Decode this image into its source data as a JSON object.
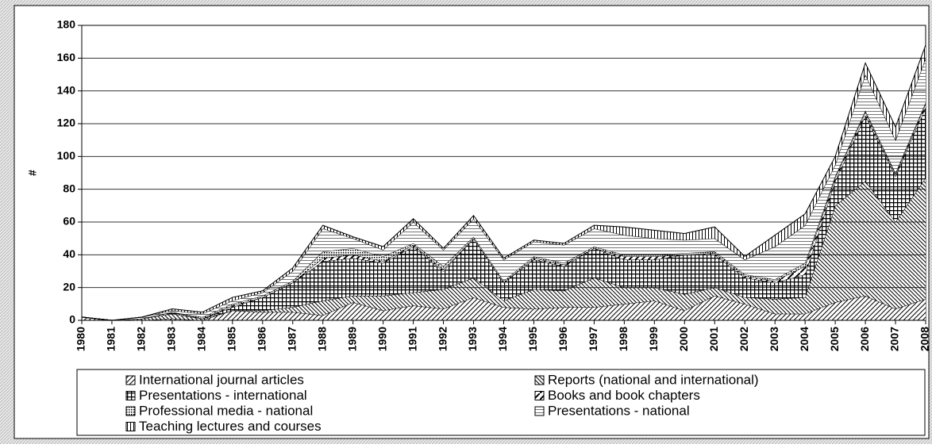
{
  "chart_data": {
    "type": "stacked-area",
    "y_label": "#",
    "categories": [
      "1980",
      "1981",
      "1982",
      "1983",
      "1984",
      "1985",
      "1986",
      "1987",
      "1988",
      "1989",
      "1990",
      "1991",
      "1992",
      "1993",
      "1994",
      "1995",
      "1996",
      "1997",
      "1998",
      "1999",
      "2000",
      "2001",
      "2002",
      "2003",
      "2004",
      "2005",
      "2006",
      "2007",
      "2008"
    ],
    "ylim": [
      0,
      180
    ],
    "yticks": [
      0,
      20,
      40,
      60,
      80,
      100,
      120,
      140,
      160,
      180
    ],
    "grid": true,
    "legend": "bottom",
    "series": [
      {
        "name": "International journal articles",
        "color": "#000000",
        "pattern": "diagonal",
        "values": [
          2,
          0,
          0,
          1,
          0,
          6,
          5,
          5,
          3,
          11,
          6,
          9,
          7,
          14,
          8,
          7,
          8,
          8,
          10,
          12,
          6,
          15,
          10,
          4,
          4,
          11,
          15,
          7,
          13
        ]
      },
      {
        "name": "Reports (national and international)",
        "color": "#000000",
        "pattern": "back-diagonal",
        "values": [
          0,
          0,
          1,
          3,
          1,
          0,
          1,
          3,
          9,
          4,
          9,
          8,
          12,
          12,
          4,
          12,
          10,
          18,
          10,
          8,
          10,
          5,
          4,
          9,
          10,
          59,
          70,
          53,
          74
        ]
      },
      {
        "name": "Presentations - international",
        "color": "#000000",
        "pattern": "grid",
        "values": [
          0,
          0,
          0,
          1,
          0,
          2,
          8,
          15,
          24,
          23,
          20,
          28,
          11,
          24,
          11,
          18,
          15,
          18,
          17,
          17,
          24,
          20,
          12,
          10,
          14,
          15,
          40,
          28,
          43
        ]
      },
      {
        "name": "Books and book chapters",
        "color": "#000000",
        "pattern": "wide-diagonal",
        "values": [
          0,
          0,
          0,
          0,
          0,
          1,
          0,
          0,
          2,
          2,
          1,
          1,
          1,
          0,
          0,
          1,
          1,
          0,
          2,
          2,
          0,
          1,
          1,
          1,
          5,
          2,
          2,
          1,
          2
        ]
      },
      {
        "name": "Professional media - national",
        "color": "#000000",
        "pattern": "dots",
        "values": [
          0,
          0,
          0,
          0,
          1,
          1,
          1,
          1,
          4,
          4,
          3,
          1,
          2,
          1,
          1,
          1,
          1,
          1,
          1,
          1,
          1,
          1,
          1,
          1,
          2,
          1,
          1,
          1,
          1
        ]
      },
      {
        "name": "Presentations - national",
        "color": "#000000",
        "pattern": "horizontal",
        "values": [
          0,
          0,
          1,
          1,
          2,
          2,
          2,
          6,
          14,
          6,
          4,
          13,
          10,
          11,
          13,
          9,
          11,
          11,
          12,
          10,
          8,
          8,
          9,
          20,
          23,
          7,
          22,
          20,
          27
        ]
      },
      {
        "name": "Teaching lectures and courses",
        "color": "#000000",
        "pattern": "vertical",
        "values": [
          0,
          0,
          0,
          1,
          1,
          2,
          1,
          2,
          2,
          1,
          2,
          2,
          1,
          2,
          1,
          1,
          1,
          2,
          5,
          5,
          4,
          7,
          2,
          7,
          7,
          5,
          7,
          8,
          8
        ]
      }
    ]
  }
}
